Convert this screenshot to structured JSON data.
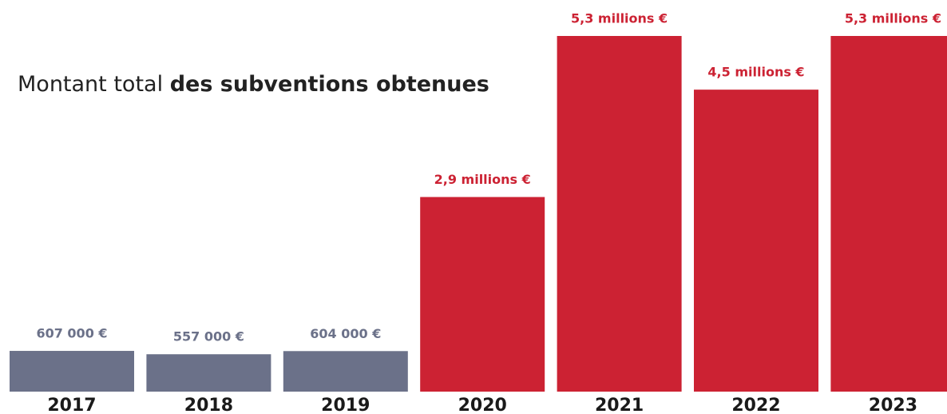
{
  "chart_data": {
    "type": "bar",
    "title": [
      "Montant total",
      "des subventions obtenues"
    ],
    "categories": [
      "2017",
      "2018",
      "2019",
      "2020",
      "2021",
      "2022",
      "2023"
    ],
    "values": [
      607000,
      557000,
      604000,
      2900000,
      5300000,
      4500000,
      5300000
    ],
    "value_labels": [
      "607 000 €",
      "557 000 €",
      "604 000 €",
      "2,9 millions €",
      "5,3 millions €",
      "4,5 millions €",
      "5,3 millions €"
    ],
    "colors": [
      "#6b7189",
      "#6b7189",
      "#6b7189",
      "#cc2233",
      "#cc2233",
      "#cc2233",
      "#cc2233"
    ]
  }
}
